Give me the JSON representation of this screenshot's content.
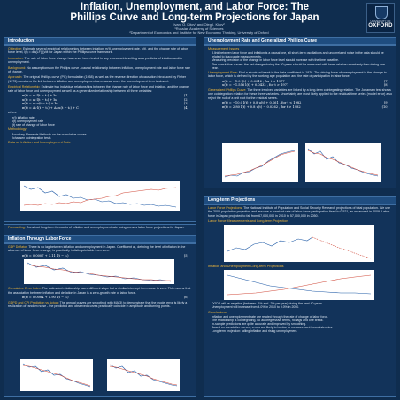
{
  "header": {
    "title_line1": "Inflation, Unemployment, and Labor Force: The",
    "title_line2": "Phillips Curve and Long-term Projections for Japan",
    "authors": "Ivan. O. Kitov¹ and Oleg I. Kitov²",
    "aff1": "¹Russian Academy of Sciences",
    "aff2": "²Department of Economics and Institute for New Economic Thinking, University of Oxford",
    "logo_text": "UNIVERSITY OF",
    "logo_name": "OXFORD"
  },
  "intro": {
    "heading": "Introduction",
    "p1_label": "Objective:",
    "p1": "Estimate several empirical relationships between inflation, π(t), unemployment rate, u(t), and the change rate of labor force level, l(t) = dln(LF(t))/dt for Japan within the Phillips curve framework.",
    "p2_label": "Innovation:",
    "p2": "The rate of labor force change has never been tested in any econometric setting as a predictor of inflation and/or unemployment.",
    "p3_label": "Background:",
    "p3": "No assumptions on the Phillips curve - causal relationship between inflation, unemployment rate and labor force rate of change.",
    "p4_label": "Approach:",
    "p4": "The original Phillips curve (PC) formulation (1958) as well as the reverse direction of causation introduced by Fisher (1973) considers the link between inflation and unemployment as a causal one - the unemployment term is absent.",
    "p5_label": "Empirical Relationship:",
    "p5": "Estimate two individual relationships between the change rate of labor force and inflation, and the change rate of labor force and unemployment as well as a generalized relationship between all three variables:",
    "eq1": "π(t) = a₁·l(t − t₁) + b₁",
    "eq1n": "(1)",
    "eq2": "u(t) = a₂·l(t − t₂) + b₂",
    "eq2n": "(2)",
    "eq3": "π(t) = a₃·u(t − t₃) + b₃",
    "eq3n": "(3)",
    "eq4": "π(t) = A₁·l(t − t₁) + A₂·u(t − t₂) + C",
    "eq4n": "(4)",
    "where": "where",
    "w1": "π(t)  inflation rate",
    "w2": "u(t)  unemployment rate",
    "w3": "l(t)  rate of change of labor force",
    "meth_label": "Methodology:",
    "m1": "Boundary Elements Methods on the cumulative curves",
    "m2": "Johansen cointegration tests",
    "data_label": "Data on Inflation and Unemployment Rate",
    "fore_label": "Forecasting:",
    "fore": "Construct long-term forecasts of inflation and unemployment rate using census labor force projections for Japan."
  },
  "left2": {
    "heading": "Inflation Through Labor Force",
    "p1_label": "GDP Deflator:",
    "p1": "There is no lag between inflation and unemployment in Japan. Coefficient a₁, defining the level of inflation in the absence of labor force change, is practically indistinguishable from zero:",
    "eq5": "π(t) = 0.0007 + 3.11 l(t − t₁)",
    "eq5n": "(5)",
    "p2_label": "Cumulative Error Index:",
    "p2": "The estimated relationship has a different slope but a similar intercept term close to zero. This means that the association between inflation and deflation in Japan is a zero-growth rate of labor force.",
    "eq6": "π(t) = 0.0084 + 1.90 l(t − t₁)",
    "eq6n": "(6)",
    "p3_label": "GDPD and CPI Prediction vs Actual:",
    "p3": "The annual curves are smoothed with MA(3) to demonstrate that the model error is likely a realization of random noise - the predicted and observed curves practically coincide in amplitude and turning points."
  },
  "right1": {
    "heading": "Unemployment Rate and Generalized Phillips Curve",
    "sub1": "Measurement Issues",
    "b1": "A link between labor force and inflation is a causal one, all short-term oscillations and uncorrelated noise in the data should be related to inaccurate measurements.",
    "b2": "Measuring precision of the change in labor force level should increase with the time baseline.",
    "b3": "The cumulative curves: the net change during the 30 years should be measured with lower relative uncertainty than during one year.",
    "p1_label": "Unemployment Rate:",
    "p1": "Find a structural break in the beta coefficient in 1976. The driving force of unemployment is the change in labor force, which is defined by the working age population and the rate of participation in labor force.",
    "eq7": "u(t) = −1.0 l(t) + 0.0012 ,  for t < 1977",
    "eq7n": "(7)",
    "eq8": "u(t) = −1.556 l(t) + 0.0432 ,  for t > 1977",
    "eq8n": "(8)",
    "p2_label": "Generalized Phillips Curve:",
    "p2": "The three involved variables are linked by a long-term cointegrating relation. The Johansen test shows one cointegration relation for these three variables. Uncertainty are most likely applied to the residual time series (model error) also reject the null of a unit root for the residual series.",
    "eq9": "π(t) = −10.0 l(t) + 0.8 u(t) + 0.161 ,  for t < 1982",
    "eq9n": "(9)",
    "eq10": "π(t) = 2.80 l(t) + 0.8 u(t) − 0.0262 ,  for t > 1982",
    "eq10n": "(10)"
  },
  "right2": {
    "heading": "Long-term Projections",
    "p1_label": "Labor Force Projections:",
    "p1": "The National Institute of Population and Social Security Research projections of total population. We use the 2006 population projection and assume a constant rate of labor force participation fixed to 0.521, as measured in 2009. Labor force in Japan projected to fall from 67,000,000 in 2010 to 57,000,000 in 2050.",
    "sub2": "Labor Force Measurements and Long-term Projection",
    "sub3": "Inflation and Unemployment Long-term Projections",
    "b1": "DGDP will be negative (between -1% and -2% per year) during the next 40 years.",
    "b2": "Unemployment will increase from 4.0% in 2010 to 9.0% in 2050.",
    "concl": "Conclusions",
    "c1": "Inflation and unemployment rate are related through the rate of change of labor force.",
    "c2": "The relationship is cointegrating, no autoregressive terms, no lags and one break.",
    "c3": "In-sample predictions are quite accurate and improved by smoothing.",
    "c4": "Based on cumulative curves, errors are likely to be due to measurement inconsistencies.",
    "c5": "Long-term projection: falling inflation and rising unemployment."
  },
  "colors": {
    "background": "#0f2d4f",
    "accent": "#f0b73a",
    "panel": "#12335a",
    "heading": "#1f4d80"
  }
}
